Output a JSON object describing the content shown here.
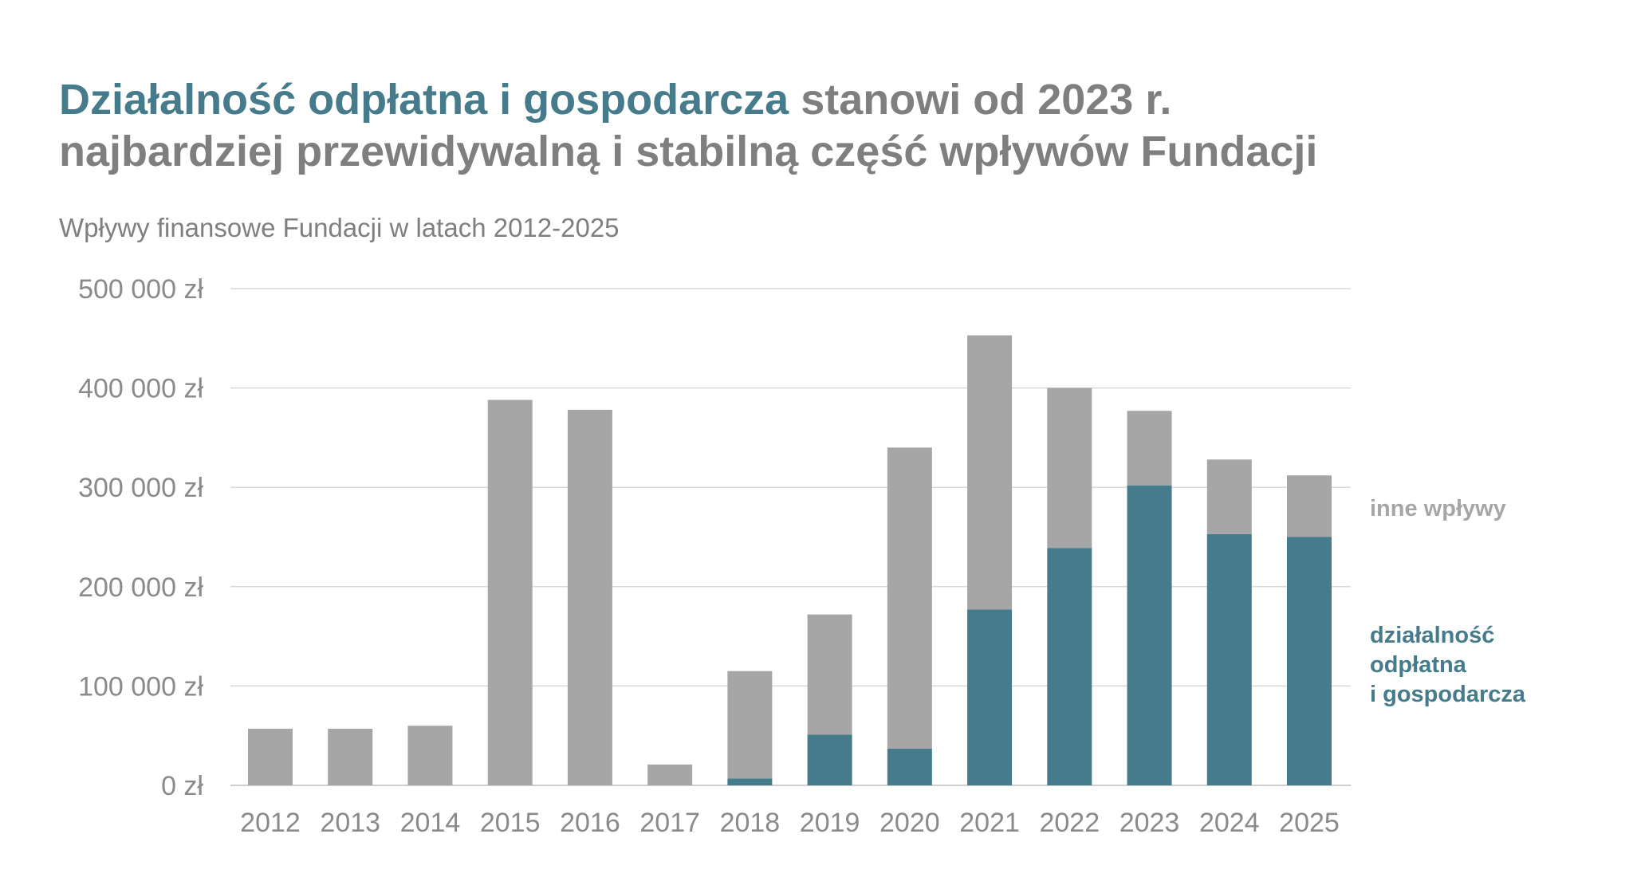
{
  "chart_data": {
    "type": "bar",
    "stacked": true,
    "title_highlight": "Działalność odpłatna i gospodarcza",
    "title_rest_line1": " stanowi od 2023 r.",
    "title_line2": "najbardziej przewidywalną i stabilną część wpływów Fundacji",
    "subtitle": "Wpływy finansowe Fundacji w latach 2012-2025",
    "categories": [
      "2012",
      "2013",
      "2014",
      "2015",
      "2016",
      "2017",
      "2018",
      "2019",
      "2020",
      "2021",
      "2022",
      "2023",
      "2024",
      "2025"
    ],
    "series": [
      {
        "name": "działalność odpłatna i gospodarcza",
        "legend_lines": [
          "działalność",
          "odpłatna",
          "i gospodarcza"
        ],
        "color": "#467b8c",
        "values": [
          0,
          0,
          0,
          0,
          0,
          0,
          7000,
          51000,
          37000,
          177000,
          239000,
          302000,
          253000,
          250000
        ]
      },
      {
        "name": "inne wpływy",
        "legend_lines": [
          "inne wpływy"
        ],
        "color": "#a6a6a6",
        "values": [
          57000,
          57000,
          60000,
          388000,
          378000,
          21000,
          108000,
          121000,
          303000,
          276000,
          161000,
          75000,
          75000,
          62000
        ]
      }
    ],
    "yticks": [
      0,
      100000,
      200000,
      300000,
      400000,
      500000
    ],
    "ytick_labels": [
      "0 zł",
      "100 000 zł",
      "200 000 zł",
      "300 000 zł",
      "400 000 zł",
      "500 000 zł"
    ],
    "ylim": [
      0,
      500000
    ],
    "grid": true,
    "legend_placement": "right"
  }
}
